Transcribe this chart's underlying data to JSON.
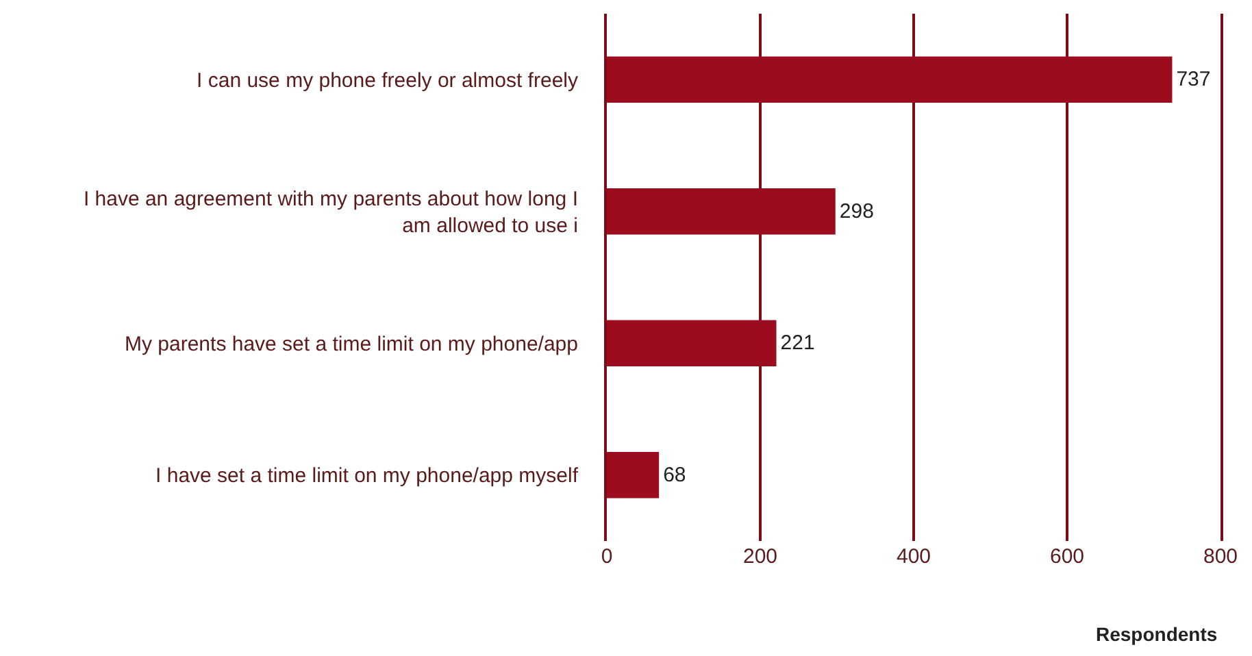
{
  "chart_data": {
    "type": "bar",
    "orientation": "horizontal",
    "categories": [
      "I can use my phone freely or almost freely",
      "I have an agreement with my parents about how long I am allowed to use i",
      "My parents have set a time limit on my phone/app",
      "I have set a time limit on my phone/app myself"
    ],
    "values": [
      737,
      298,
      221,
      68
    ],
    "color": "#9b0d1e",
    "xlim": [
      0,
      800
    ],
    "xticks": [
      0,
      200,
      400,
      600,
      800
    ],
    "xlabel": "Respondents",
    "grid": "x",
    "data_labels": true
  }
}
